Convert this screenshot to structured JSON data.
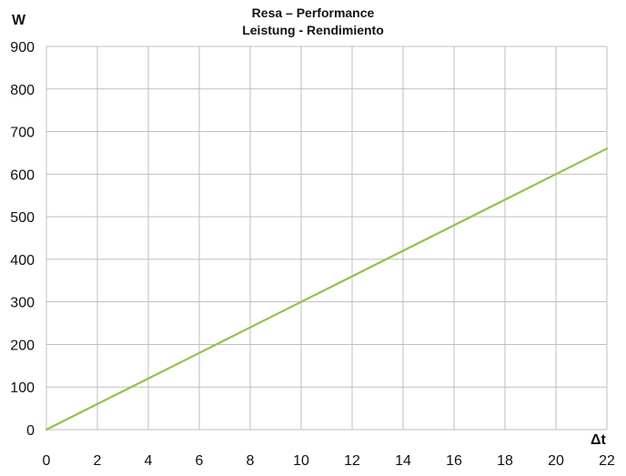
{
  "chart_data": {
    "type": "line",
    "title": "Resa – Performance",
    "subtitle": "Leistung - Rendimiento",
    "xlabel": "Δt",
    "ylabel": "W",
    "xlim": [
      0,
      22
    ],
    "ylim": [
      0,
      900
    ],
    "x_ticks": [
      0,
      2,
      4,
      6,
      8,
      10,
      12,
      14,
      16,
      18,
      20,
      22
    ],
    "y_ticks": [
      0,
      100,
      200,
      300,
      400,
      500,
      600,
      700,
      800,
      900
    ],
    "grid": true,
    "legend": "none",
    "series": [
      {
        "color": "#92c050",
        "x": [
          0,
          2,
          4,
          6,
          8,
          10,
          12,
          14,
          16,
          18,
          20,
          22
        ],
        "y": [
          0,
          60,
          120,
          180,
          240,
          300,
          360,
          420,
          480,
          540,
          600,
          660
        ]
      }
    ]
  },
  "colors": {
    "grid": "#bfbfbf",
    "line": "#92c050",
    "text": "#111111"
  }
}
